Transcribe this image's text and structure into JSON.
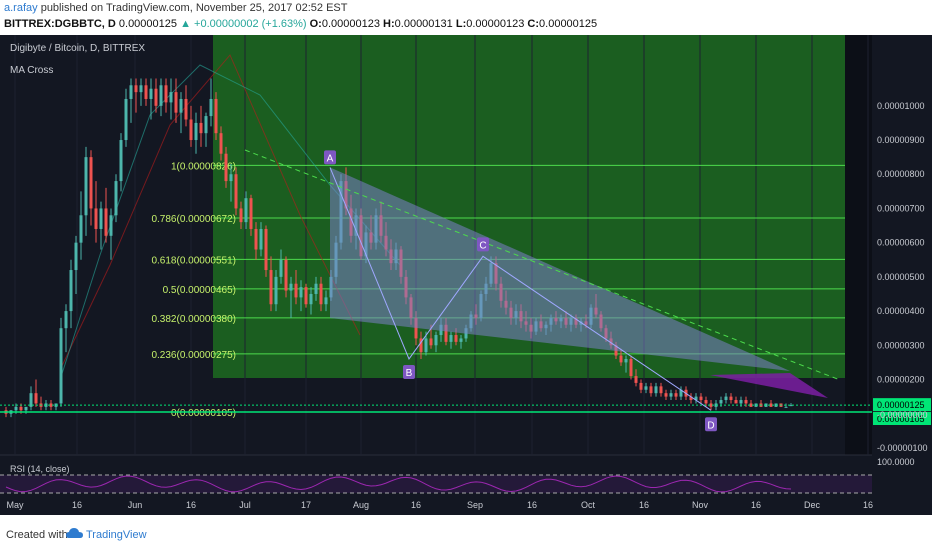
{
  "header": {
    "author": "a.rafay",
    "published": " published on TradingView.com, November 25, 2017 02:52 EST",
    "symbol": "BITTREX:DGBBTC, D",
    "price": "0.00000125",
    "change": "▲ +0.00000002 (+1.63%)",
    "o_label": "O:",
    "o_value": "0.00000123",
    "h_label": "H:",
    "h_value": "0.00000131",
    "l_label": "L:",
    "l_value": "0.00000123",
    "c_label": "C:",
    "c_value": "0.00000125"
  },
  "legend": {
    "pair": "Digibyte / Bitcoin, D, BITTREX",
    "study": "MA Cross"
  },
  "footer": {
    "created_with": "Created with",
    "brand": "TradingView"
  },
  "colors": {
    "background": "#131722",
    "fib_zone": "#1b5e20",
    "fib_line": "#4cdb4c",
    "up_candle": "#4db6ac",
    "down_candle": "#ef5350",
    "pattern_fill": "#7b7fc9",
    "rsi": "#9c27b0",
    "current_price": "#00e676"
  },
  "chart_data": {
    "type": "candlestick",
    "price_axis_labels": [
      "0.00001000",
      "0.00000900",
      "0.00000800",
      "0.00000700",
      "0.00000600",
      "0.00000500",
      "0.00000400",
      "0.00000300",
      "0.00000200",
      "0.00000125",
      "0.00000105",
      "-0.00000000",
      "-0.00000100"
    ],
    "time_axis_labels": [
      "May",
      "16",
      "Jun",
      "16",
      "Jul",
      "17",
      "Aug",
      "16",
      "Sep",
      "16",
      "Oct",
      "16",
      "Nov",
      "16",
      "Dec",
      "16"
    ],
    "fib_levels": [
      {
        "label": "1(0.00000826)",
        "value": 8.26e-06
      },
      {
        "label": "0.786(0.00000672)",
        "value": 6.72e-06
      },
      {
        "label": "0.618(0.00000551)",
        "value": 5.51e-06
      },
      {
        "label": "0.5(0.00000465)",
        "value": 4.65e-06
      },
      {
        "label": "0.382(0.00000380)",
        "value": 3.8e-06
      },
      {
        "label": "0.236(0.00000275)",
        "value": 2.75e-06
      },
      {
        "label": "0(0.00000105)",
        "value": 1.05e-06
      }
    ],
    "pattern_points": [
      {
        "label": "A",
        "date": "Jul 23",
        "value": 8.2e-06
      },
      {
        "label": "B",
        "date": "Aug 11",
        "value": 2.6e-06
      },
      {
        "label": "C",
        "date": "Sep 1",
        "value": 5.6e-06
      },
      {
        "label": "D",
        "date": "Nov 3",
        "value": 1.1e-06
      }
    ],
    "current_price": 1.25e-06,
    "support_price": 1.05e-06,
    "rsi_label": "RSI (14, close)",
    "rsi_axis_label": "100.0000",
    "candles": [
      {
        "o": 1.1e-06,
        "h": 1.2e-06,
        "l": 9e-07,
        "c": 1e-06
      },
      {
        "o": 1e-06,
        "h": 1.1e-06,
        "l": 9e-07,
        "c": 1.1e-06
      },
      {
        "o": 1.1e-06,
        "h": 1.3e-06,
        "l": 1e-06,
        "c": 1.2e-06
      },
      {
        "o": 1.2e-06,
        "h": 1.3e-06,
        "l": 1e-06,
        "c": 1.1e-06
      },
      {
        "o": 1.1e-06,
        "h": 1.2e-06,
        "l": 1e-06,
        "c": 1.2e-06
      },
      {
        "o": 1.2e-06,
        "h": 1.8e-06,
        "l": 1.1e-06,
        "c": 1.6e-06
      },
      {
        "o": 1.6e-06,
        "h": 2e-06,
        "l": 1.2e-06,
        "c": 1.3e-06
      },
      {
        "o": 1.3e-06,
        "h": 1.5e-06,
        "l": 1.1e-06,
        "c": 1.2e-06
      },
      {
        "o": 1.2e-06,
        "h": 1.4e-06,
        "l": 1.1e-06,
        "c": 1.3e-06
      },
      {
        "o": 1.3e-06,
        "h": 1.4e-06,
        "l": 1.1e-06,
        "c": 1.2e-06
      },
      {
        "o": 1.2e-06,
        "h": 1.3e-06,
        "l": 1.1e-06,
        "c": 1.3e-06
      },
      {
        "o": 1.3e-06,
        "h": 3.8e-06,
        "l": 1.2e-06,
        "c": 3.5e-06
      },
      {
        "o": 3.5e-06,
        "h": 4.2e-06,
        "l": 2.8e-06,
        "c": 4e-06
      },
      {
        "o": 4e-06,
        "h": 5.5e-06,
        "l": 3.5e-06,
        "c": 5.2e-06
      },
      {
        "o": 5.2e-06,
        "h": 6.2e-06,
        "l": 4.5e-06,
        "c": 6e-06
      },
      {
        "o": 6e-06,
        "h": 7.5e-06,
        "l": 5.5e-06,
        "c": 6.8e-06
      },
      {
        "o": 6.8e-06,
        "h": 8.8e-06,
        "l": 6.2e-06,
        "c": 8.5e-06
      },
      {
        "o": 8.5e-06,
        "h": 8.7e-06,
        "l": 6.5e-06,
        "c": 7e-06
      },
      {
        "o": 7e-06,
        "h": 7.8e-06,
        "l": 6e-06,
        "c": 6.4e-06
      },
      {
        "o": 6.4e-06,
        "h": 7.2e-06,
        "l": 5.8e-06,
        "c": 7e-06
      },
      {
        "o": 7e-06,
        "h": 7.6e-06,
        "l": 6e-06,
        "c": 6.2e-06
      },
      {
        "o": 6.2e-06,
        "h": 7e-06,
        "l": 5.5e-06,
        "c": 6.8e-06
      },
      {
        "o": 6.8e-06,
        "h": 8e-06,
        "l": 6.6e-06,
        "c": 7.8e-06
      },
      {
        "o": 7.8e-06,
        "h": 9.2e-06,
        "l": 7.5e-06,
        "c": 9e-06
      },
      {
        "o": 9e-06,
        "h": 1.05e-05,
        "l": 8.8e-06,
        "c": 1.02e-05
      },
      {
        "o": 1.02e-05,
        "h": 1.08e-05,
        "l": 9.5e-06,
        "c": 1.06e-05
      },
      {
        "o": 1.06e-05,
        "h": 1.08e-05,
        "l": 9.8e-06,
        "c": 1.04e-05
      },
      {
        "o": 1.04e-05,
        "h": 1.08e-05,
        "l": 1e-05,
        "c": 1.06e-05
      },
      {
        "o": 1.06e-05,
        "h": 1.08e-05,
        "l": 1e-05,
        "c": 1.02e-05
      },
      {
        "o": 1.02e-05,
        "h": 1.08e-05,
        "l": 9.6e-06,
        "c": 1.05e-05
      },
      {
        "o": 1.05e-05,
        "h": 1.08e-05,
        "l": 9.8e-06,
        "c": 1e-05
      },
      {
        "o": 1e-05,
        "h": 1.08e-05,
        "l": 9.7e-06,
        "c": 1.06e-05
      },
      {
        "o": 1.06e-05,
        "h": 1.08e-05,
        "l": 9.8e-06,
        "c": 1.01e-05
      },
      {
        "o": 1.01e-05,
        "h": 1.08e-05,
        "l": 9.6e-06,
        "c": 1.04e-05
      },
      {
        "o": 1.04e-05,
        "h": 1.08e-05,
        "l": 9.5e-06,
        "c": 9.8e-06
      },
      {
        "o": 9.8e-06,
        "h": 1.04e-05,
        "l": 9.2e-06,
        "c": 1.02e-05
      },
      {
        "o": 1.02e-05,
        "h": 1.06e-05,
        "l": 9.4e-06,
        "c": 9.6e-06
      },
      {
        "o": 9.6e-06,
        "h": 1e-05,
        "l": 8.8e-06,
        "c": 9e-06
      },
      {
        "o": 9e-06,
        "h": 9.8e-06,
        "l": 8.6e-06,
        "c": 9.5e-06
      },
      {
        "o": 9.5e-06,
        "h": 1e-05,
        "l": 8.8e-06,
        "c": 9.2e-06
      },
      {
        "o": 9.2e-06,
        "h": 9.8e-06,
        "l": 8.8e-06,
        "c": 9.7e-06
      },
      {
        "o": 9.7e-06,
        "h": 1.08e-05,
        "l": 9.4e-06,
        "c": 1.02e-05
      },
      {
        "o": 1.02e-05,
        "h": 1.04e-05,
        "l": 9e-06,
        "c": 9.2e-06
      },
      {
        "o": 9.2e-06,
        "h": 9.4e-06,
        "l": 8.4e-06,
        "c": 8.6e-06
      },
      {
        "o": 8.6e-06,
        "h": 8.8e-06,
        "l": 7.6e-06,
        "c": 7.8e-06
      },
      {
        "o": 7.8e-06,
        "h": 8.3e-06,
        "l": 7.2e-06,
        "c": 8e-06
      },
      {
        "o": 8e-06,
        "h": 8.2e-06,
        "l": 6.8e-06,
        "c": 7e-06
      },
      {
        "o": 7e-06,
        "h": 7.2e-06,
        "l": 6.4e-06,
        "c": 6.6e-06
      },
      {
        "o": 6.6e-06,
        "h": 7.5e-06,
        "l": 6.4e-06,
        "c": 7.3e-06
      },
      {
        "o": 7.3e-06,
        "h": 7.4e-06,
        "l": 6.2e-06,
        "c": 6.4e-06
      },
      {
        "o": 6.4e-06,
        "h": 6.6e-06,
        "l": 5.5e-06,
        "c": 5.8e-06
      },
      {
        "o": 5.8e-06,
        "h": 6.6e-06,
        "l": 5.6e-06,
        "c": 6.4e-06
      },
      {
        "o": 6.4e-06,
        "h": 6.5e-06,
        "l": 5e-06,
        "c": 5.2e-06
      },
      {
        "o": 5.2e-06,
        "h": 5.6e-06,
        "l": 4e-06,
        "c": 4.2e-06
      },
      {
        "o": 4.2e-06,
        "h": 5.2e-06,
        "l": 4e-06,
        "c": 5e-06
      },
      {
        "o": 5e-06,
        "h": 5.8e-06,
        "l": 4.8e-06,
        "c": 5.5e-06
      },
      {
        "o": 5.5e-06,
        "h": 5.6e-06,
        "l": 4.4e-06,
        "c": 4.6e-06
      },
      {
        "o": 4.6e-06,
        "h": 5e-06,
        "l": 3.8e-06,
        "c": 4.8e-06
      },
      {
        "o": 4.8e-06,
        "h": 5.2e-06,
        "l": 4.2e-06,
        "c": 4.4e-06
      },
      {
        "o": 4.4e-06,
        "h": 4.9e-06,
        "l": 4e-06,
        "c": 4.7e-06
      },
      {
        "o": 4.7e-06,
        "h": 4.8e-06,
        "l": 4.1e-06,
        "c": 4.2e-06
      },
      {
        "o": 4.2e-06,
        "h": 4.7e-06,
        "l": 3.9e-06,
        "c": 4.5e-06
      },
      {
        "o": 4.5e-06,
        "h": 5e-06,
        "l": 4.3e-06,
        "c": 4.8e-06
      },
      {
        "o": 4.8e-06,
        "h": 5e-06,
        "l": 4e-06,
        "c": 4.2e-06
      },
      {
        "o": 4.2e-06,
        "h": 4.6e-06,
        "l": 4e-06,
        "c": 4.4e-06
      },
      {
        "o": 4.4e-06,
        "h": 5.2e-06,
        "l": 4.3e-06,
        "c": 5e-06
      },
      {
        "o": 5e-06,
        "h": 6.2e-06,
        "l": 4.8e-06,
        "c": 6e-06
      },
      {
        "o": 6e-06,
        "h": 8e-06,
        "l": 5.8e-06,
        "c": 7.8e-06
      },
      {
        "o": 7.8e-06,
        "h": 8.2e-06,
        "l": 6.8e-06,
        "c": 7e-06
      },
      {
        "o": 7e-06,
        "h": 7.4e-06,
        "l": 6e-06,
        "c": 6.2e-06
      },
      {
        "o": 6.2e-06,
        "h": 7e-06,
        "l": 5.8e-06,
        "c": 6.8e-06
      },
      {
        "o": 6.8e-06,
        "h": 7e-06,
        "l": 5.5e-06,
        "c": 5.6e-06
      },
      {
        "o": 5.6e-06,
        "h": 6.5e-06,
        "l": 5.4e-06,
        "c": 6.3e-06
      },
      {
        "o": 6.3e-06,
        "h": 6.8e-06,
        "l": 5.8e-06,
        "c": 6e-06
      },
      {
        "o": 6e-06,
        "h": 7e-06,
        "l": 5.8e-06,
        "c": 6.8e-06
      },
      {
        "o": 6.8e-06,
        "h": 7.2e-06,
        "l": 6e-06,
        "c": 6.2e-06
      },
      {
        "o": 6.2e-06,
        "h": 6.6e-06,
        "l": 5.6e-06,
        "c": 5.8e-06
      },
      {
        "o": 5.8e-06,
        "h": 6.1e-06,
        "l": 5.2e-06,
        "c": 5.4e-06
      },
      {
        "o": 5.4e-06,
        "h": 6e-06,
        "l": 5.2e-06,
        "c": 5.8e-06
      },
      {
        "o": 5.8e-06,
        "h": 5.9e-06,
        "l": 4.8e-06,
        "c": 5e-06
      },
      {
        "o": 5e-06,
        "h": 5.2e-06,
        "l": 4.2e-06,
        "c": 4.4e-06
      },
      {
        "o": 4.4e-06,
        "h": 4.5e-06,
        "l": 3.6e-06,
        "c": 3.8e-06
      },
      {
        "o": 3.8e-06,
        "h": 4e-06,
        "l": 3e-06,
        "c": 3.2e-06
      },
      {
        "o": 3.2e-06,
        "h": 3.4e-06,
        "l": 2.6e-06,
        "c": 2.8e-06
      },
      {
        "o": 2.8e-06,
        "h": 3.4e-06,
        "l": 2.7e-06,
        "c": 3.2e-06
      },
      {
        "o": 3.2e-06,
        "h": 3.6e-06,
        "l": 2.9e-06,
        "c": 3e-06
      },
      {
        "o": 3e-06,
        "h": 3.4e-06,
        "l": 2.8e-06,
        "c": 3.3e-06
      },
      {
        "o": 3.3e-06,
        "h": 3.8e-06,
        "l": 3.1e-06,
        "c": 3.6e-06
      },
      {
        "o": 3.6e-06,
        "h": 3.8e-06,
        "l": 3e-06,
        "c": 3.1e-06
      },
      {
        "o": 3.1e-06,
        "h": 3.4e-06,
        "l": 2.9e-06,
        "c": 3.3e-06
      },
      {
        "o": 3.3e-06,
        "h": 3.5e-06,
        "l": 3e-06,
        "c": 3.1e-06
      },
      {
        "o": 3.1e-06,
        "h": 3.3e-06,
        "l": 2.9e-06,
        "c": 3.2e-06
      },
      {
        "o": 3.2e-06,
        "h": 3.6e-06,
        "l": 3.1e-06,
        "c": 3.5e-06
      },
      {
        "o": 3.5e-06,
        "h": 4e-06,
        "l": 3.4e-06,
        "c": 3.9e-06
      },
      {
        "o": 3.9e-06,
        "h": 4.2e-06,
        "l": 3.6e-06,
        "c": 3.8e-06
      },
      {
        "o": 3.8e-06,
        "h": 4.6e-06,
        "l": 3.7e-06,
        "c": 4.5e-06
      },
      {
        "o": 4.5e-06,
        "h": 5e-06,
        "l": 4.3e-06,
        "c": 4.8e-06
      },
      {
        "o": 4.8e-06,
        "h": 5.6e-06,
        "l": 4.7e-06,
        "c": 5.4e-06
      },
      {
        "o": 5.4e-06,
        "h": 5.6e-06,
        "l": 4.6e-06,
        "c": 4.8e-06
      },
      {
        "o": 4.8e-06,
        "h": 5e-06,
        "l": 4.1e-06,
        "c": 4.3e-06
      },
      {
        "o": 4.3e-06,
        "h": 4.6e-06,
        "l": 3.9e-06,
        "c": 4.1e-06
      },
      {
        "o": 4.1e-06,
        "h": 4.3e-06,
        "l": 3.6e-06,
        "c": 3.8e-06
      },
      {
        "o": 3.8e-06,
        "h": 4.2e-06,
        "l": 3.6e-06,
        "c": 4e-06
      },
      {
        "o": 4e-06,
        "h": 4.2e-06,
        "l": 3.5e-06,
        "c": 3.7e-06
      },
      {
        "o": 3.7e-06,
        "h": 4e-06,
        "l": 3.4e-06,
        "c": 3.6e-06
      },
      {
        "o": 3.6e-06,
        "h": 3.8e-06,
        "l": 3.2e-06,
        "c": 3.4e-06
      },
      {
        "o": 3.4e-06,
        "h": 3.8e-06,
        "l": 3.3e-06,
        "c": 3.7e-06
      },
      {
        "o": 3.7e-06,
        "h": 3.9e-06,
        "l": 3.4e-06,
        "c": 3.5e-06
      },
      {
        "o": 3.5e-06,
        "h": 3.7e-06,
        "l": 3.3e-06,
        "c": 3.6e-06
      },
      {
        "o": 3.6e-06,
        "h": 3.9e-06,
        "l": 3.4e-06,
        "c": 3.8e-06
      },
      {
        "o": 3.8e-06,
        "h": 4e-06,
        "l": 3.6e-06,
        "c": 3.7e-06
      },
      {
        "o": 3.7e-06,
        "h": 3.9e-06,
        "l": 3.5e-06,
        "c": 3.8e-06
      },
      {
        "o": 3.8e-06,
        "h": 4e-06,
        "l": 3.5e-06,
        "c": 3.6e-06
      },
      {
        "o": 3.6e-06,
        "h": 3.9e-06,
        "l": 3.4e-06,
        "c": 3.8e-06
      },
      {
        "o": 3.8e-06,
        "h": 3.9e-06,
        "l": 3.5e-06,
        "c": 3.6e-06
      },
      {
        "o": 3.6e-06,
        "h": 3.8e-06,
        "l": 3.4e-06,
        "c": 3.7e-06
      },
      {
        "o": 3.7e-06,
        "h": 3.9e-06,
        "l": 3.5e-06,
        "c": 3.6e-06
      },
      {
        "o": 3.6e-06,
        "h": 4.2e-06,
        "l": 3.5e-06,
        "c": 4.1e-06
      },
      {
        "o": 4.1e-06,
        "h": 4.5e-06,
        "l": 3.8e-06,
        "c": 3.9e-06
      },
      {
        "o": 3.9e-06,
        "h": 4e-06,
        "l": 3.4e-06,
        "c": 3.5e-06
      },
      {
        "o": 3.5e-06,
        "h": 3.6e-06,
        "l": 3.1e-06,
        "c": 3.2e-06
      },
      {
        "o": 3.2e-06,
        "h": 3.4e-06,
        "l": 2.9e-06,
        "c": 3e-06
      },
      {
        "o": 3e-06,
        "h": 3.1e-06,
        "l": 2.6e-06,
        "c": 2.7e-06
      },
      {
        "o": 2.7e-06,
        "h": 2.9e-06,
        "l": 2.4e-06,
        "c": 2.5e-06
      },
      {
        "o": 2.5e-06,
        "h": 2.7e-06,
        "l": 2.2e-06,
        "c": 2.6e-06
      },
      {
        "o": 2.6e-06,
        "h": 2.7e-06,
        "l": 2e-06,
        "c": 2.1e-06
      },
      {
        "o": 2.1e-06,
        "h": 2.3e-06,
        "l": 1.8e-06,
        "c": 1.9e-06
      },
      {
        "o": 1.9e-06,
        "h": 2e-06,
        "l": 1.6e-06,
        "c": 1.7e-06
      },
      {
        "o": 1.7e-06,
        "h": 1.9e-06,
        "l": 1.6e-06,
        "c": 1.8e-06
      },
      {
        "o": 1.8e-06,
        "h": 1.9e-06,
        "l": 1.5e-06,
        "c": 1.6e-06
      },
      {
        "o": 1.6e-06,
        "h": 1.9e-06,
        "l": 1.5e-06,
        "c": 1.8e-06
      },
      {
        "o": 1.8e-06,
        "h": 1.9e-06,
        "l": 1.5e-06,
        "c": 1.6e-06
      },
      {
        "o": 1.6e-06,
        "h": 1.7e-06,
        "l": 1.4e-06,
        "c": 1.5e-06
      },
      {
        "o": 1.5e-06,
        "h": 1.7e-06,
        "l": 1.4e-06,
        "c": 1.6e-06
      },
      {
        "o": 1.6e-06,
        "h": 1.7e-06,
        "l": 1.4e-06,
        "c": 1.5e-06
      },
      {
        "o": 1.5e-06,
        "h": 1.8e-06,
        "l": 1.4e-06,
        "c": 1.7e-06
      },
      {
        "o": 1.7e-06,
        "h": 1.8e-06,
        "l": 1.4e-06,
        "c": 1.5e-06
      },
      {
        "o": 1.5e-06,
        "h": 1.6e-06,
        "l": 1.3e-06,
        "c": 1.4e-06
      },
      {
        "o": 1.4e-06,
        "h": 1.6e-06,
        "l": 1.3e-06,
        "c": 1.5e-06
      },
      {
        "o": 1.5e-06,
        "h": 1.6e-06,
        "l": 1.3e-06,
        "c": 1.4e-06
      },
      {
        "o": 1.4e-06,
        "h": 1.5e-06,
        "l": 1.2e-06,
        "c": 1.3e-06
      },
      {
        "o": 1.3e-06,
        "h": 1.4e-06,
        "l": 1.1e-06,
        "c": 1.2e-06
      },
      {
        "o": 1.2e-06,
        "h": 1.4e-06,
        "l": 1.1e-06,
        "c": 1.3e-06
      },
      {
        "o": 1.3e-06,
        "h": 1.5e-06,
        "l": 1.2e-06,
        "c": 1.4e-06
      },
      {
        "o": 1.4e-06,
        "h": 1.6e-06,
        "l": 1.3e-06,
        "c": 1.5e-06
      },
      {
        "o": 1.5e-06,
        "h": 1.6e-06,
        "l": 1.3e-06,
        "c": 1.4e-06
      },
      {
        "o": 1.4e-06,
        "h": 1.5e-06,
        "l": 1.3e-06,
        "c": 1.3e-06
      },
      {
        "o": 1.3e-06,
        "h": 1.5e-06,
        "l": 1.2e-06,
        "c": 1.4e-06
      },
      {
        "o": 1.4e-06,
        "h": 1.5e-06,
        "l": 1.2e-06,
        "c": 1.3e-06
      },
      {
        "o": 1.3e-06,
        "h": 1.4e-06,
        "l": 1.2e-06,
        "c": 1.2e-06
      },
      {
        "o": 1.2e-06,
        "h": 1.3e-06,
        "l": 1.2e-06,
        "c": 1.3e-06
      },
      {
        "o": 1.3e-06,
        "h": 1.4e-06,
        "l": 1.2e-06,
        "c": 1.2e-06
      },
      {
        "o": 1.2e-06,
        "h": 1.3e-06,
        "l": 1.2e-06,
        "c": 1.3e-06
      },
      {
        "o": 1.3e-06,
        "h": 1.4e-06,
        "l": 1.2e-06,
        "c": 1.2e-06
      },
      {
        "o": 1.2e-06,
        "h": 1.3e-06,
        "l": 1.2e-06,
        "c": 1.3e-06
      },
      {
        "o": 1.3e-06,
        "h": 1.3e-06,
        "l": 1.2e-06,
        "c": 1.2e-06
      },
      {
        "o": 1.2e-06,
        "h": 1.3e-06,
        "l": 1.2e-06,
        "c": 1.2e-06
      },
      {
        "o": 1.23e-06,
        "h": 1.31e-06,
        "l": 1.23e-06,
        "c": 1.25e-06
      }
    ]
  }
}
